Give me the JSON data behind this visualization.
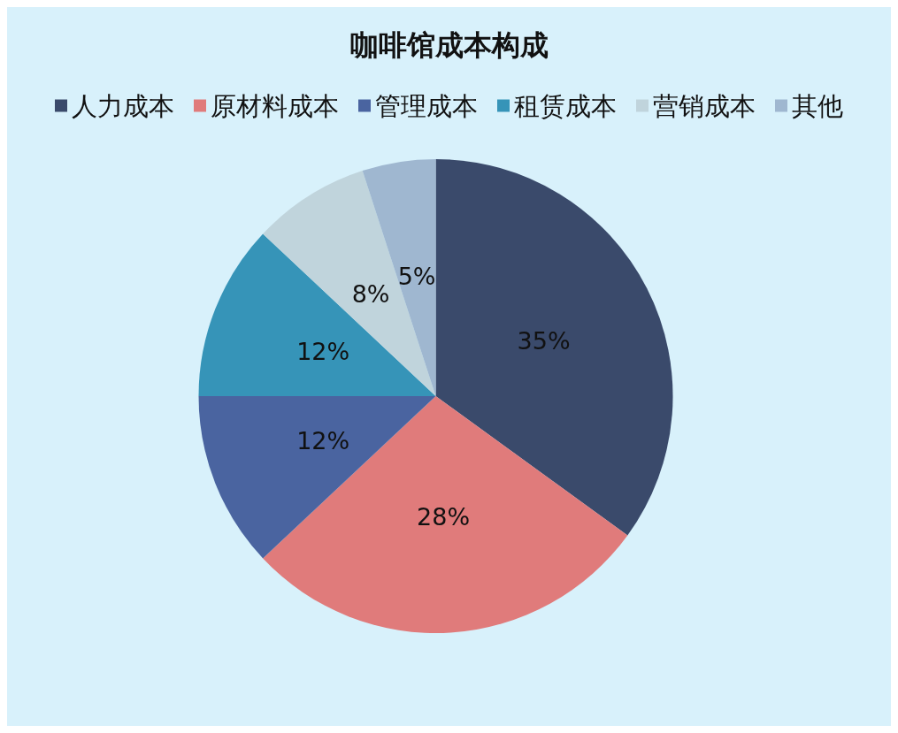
{
  "chart_data": {
    "type": "pie",
    "title": "咖啡馆成本构成",
    "categories": [
      "人力成本",
      "原材料成本",
      "管理成本",
      "租赁成本",
      "营销成本",
      "其他"
    ],
    "values": [
      35,
      28,
      12,
      12,
      8,
      5
    ],
    "colors": [
      "#3a4a6b",
      "#e07b7b",
      "#4a64a0",
      "#3694b8",
      "#c0d4dc",
      "#9fb7d0"
    ],
    "value_labels": [
      "35%",
      "28%",
      "12%",
      "12%",
      "8%",
      "5%"
    ],
    "legend": "top"
  }
}
